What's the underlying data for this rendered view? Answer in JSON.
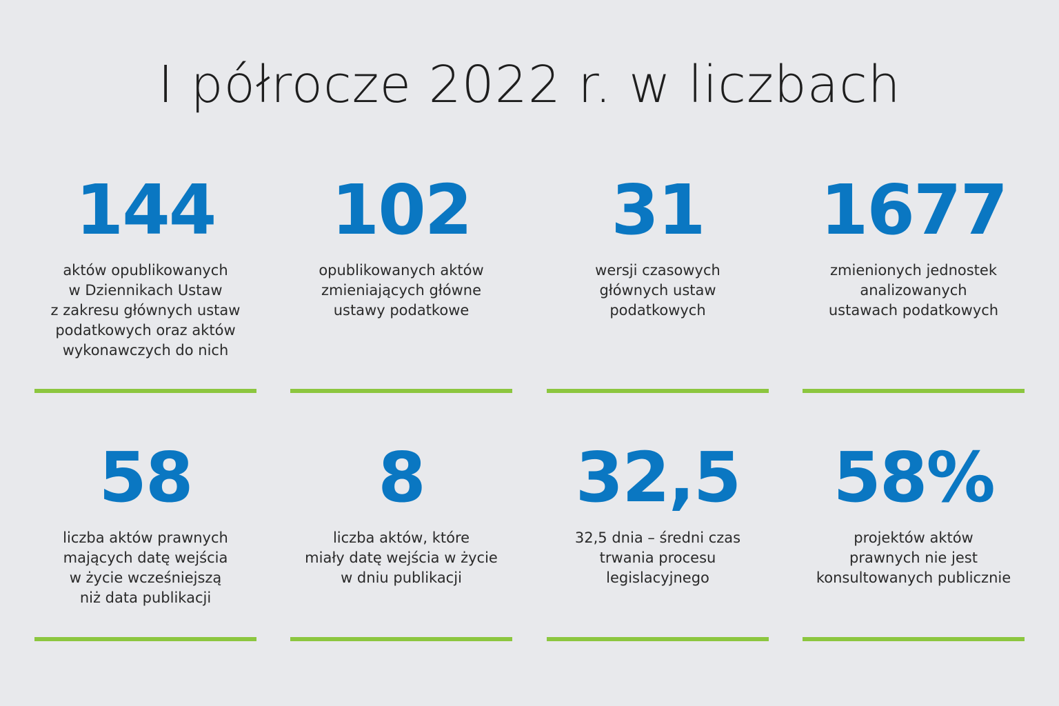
{
  "title": "I półrocze 2022 r. w liczbach",
  "stats": [
    {
      "value": "144",
      "description": "aktów opublikowanych\nw Dziennikach Ustaw\nz zakresu głównych ustaw\npodatkowych oraz aktów\nwykonawczych do nich"
    },
    {
      "value": "102",
      "description": "opublikowanych aktów\nzmieniających główne\nustawy podatkowe"
    },
    {
      "value": "31",
      "description": "wersji czasowych\ngłównych ustaw\npodatkowych"
    },
    {
      "value": "1677",
      "description": "zmienionych jednostek\nanalizowanych\nustawach podatkowych"
    },
    {
      "value": "58",
      "description": "liczba aktów prawnych\nmających datę wejścia\nw życie wcześniejszą\nniż data publikacji"
    },
    {
      "value": "8",
      "description": "liczba aktów, które\nmiały datę wejścia w życie\nw dniu publikacji"
    },
    {
      "value": "32,5",
      "description": "32,5 dnia – średni czas\ntrwania procesu\nlegislacyjnego"
    },
    {
      "value": "58%",
      "description": "projektów aktów\nprawnych nie jest\nkonsultowanych publicznie"
    }
  ],
  "colors": {
    "accent_blue": "#0a77c2",
    "divider_green": "#8cc63f",
    "background": "#e8e9ec"
  }
}
